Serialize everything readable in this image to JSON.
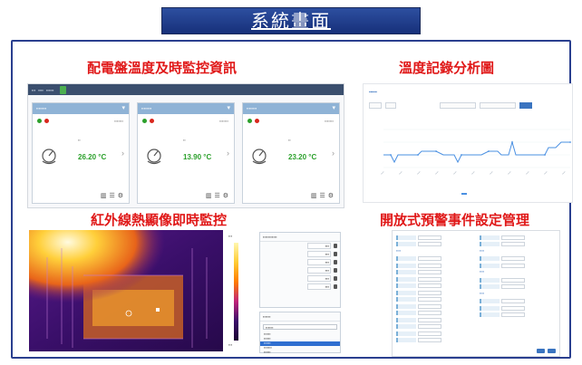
{
  "banner": {
    "title": "系統畫面"
  },
  "sections": {
    "monitor": "配電盤溫度及時監控資訊",
    "chart": "溫度記錄分析圖",
    "thermal": "紅外線熱顯像即時監控",
    "events": "開放式預警事件設定管理"
  },
  "monitor": {
    "cards": [
      {
        "temperature": "26.20 °C"
      },
      {
        "temperature": "13.90 °C"
      },
      {
        "temperature": "23.20 °C"
      }
    ]
  },
  "colors": {
    "banner": "#2d4fa0",
    "section_title": "#e01818",
    "temp_ok": "#2ba02b",
    "chart_line": "#4a90e2"
  }
}
